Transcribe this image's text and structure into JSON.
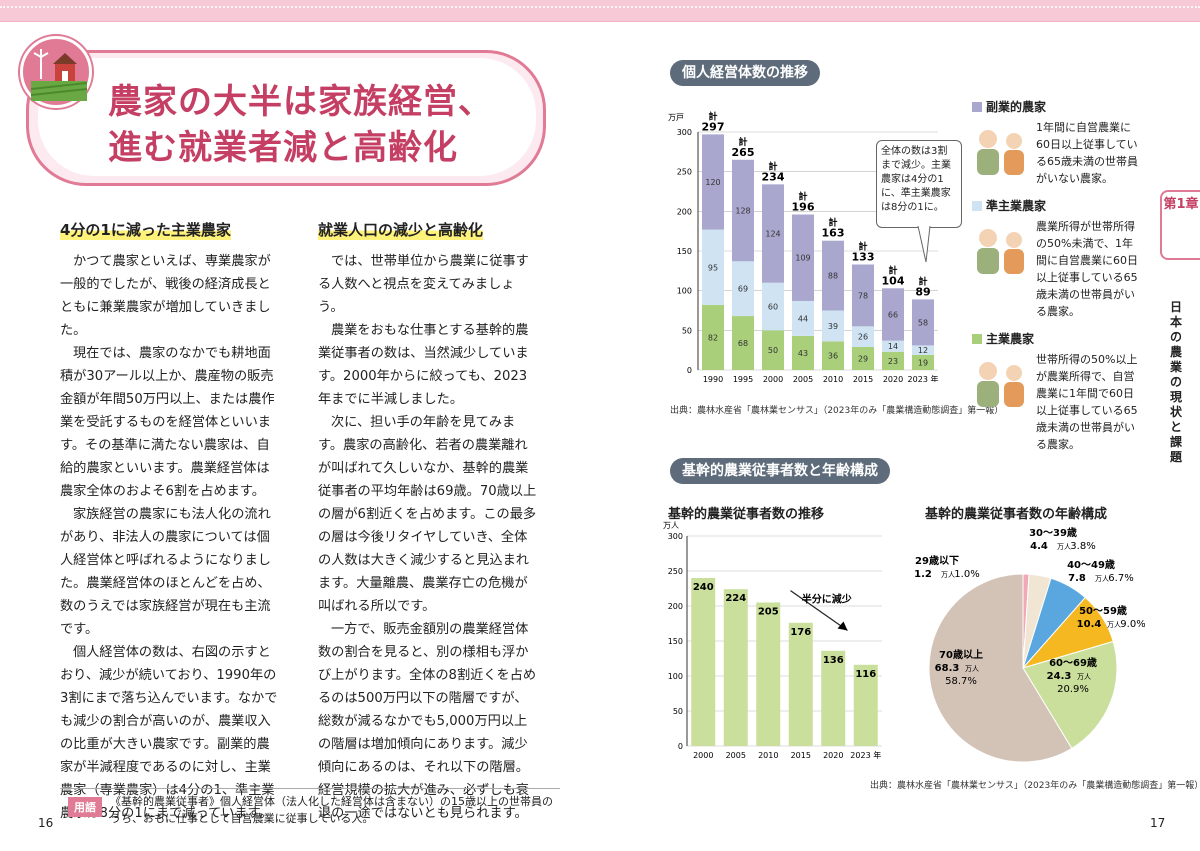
{
  "title": {
    "line1": "農家の大半は家族経営、",
    "line2": "進む就業者減と高齢化"
  },
  "left": {
    "col1_heading": "4分の1に減った主業農家",
    "col1_paragraphs": [
      "かつて農家といえば、専業農家が一般的でしたが、戦後の経済成長とともに兼業農家が増加していきました。",
      "現在では、農家のなかでも耕地面積が30アール以上か、農産物の販売金額が年間50万円以上、または農作業を受託するものを経営体といいます。その基準に満たない農家は、自給的農家といいます。農業経営体は農家全体のおよそ6割を占めます。",
      "家族経営の農家にも法人化の流れがあり、非法人の農家については個人経営体と呼ばれるようになりました。農業経営体のほとんどを占め、数のうえでは家族経営が現在も主流です。",
      "個人経営体の数は、右図の示すとおり、減少が続いており、1990年の3割にまで落ち込んでいます。なかでも減少の割合が高いのが、農業収入の比重が大きい農家です。副業的農家が半減程度であるのに対し、主業農家（専業農家）は4分の1、準主業農家は8分の1にまで減っています。"
    ],
    "col2_heading": "就業人口の減少と高齢化",
    "col2_paragraphs": [
      "では、世帯単位から農業に従事する人数へと視点を変えてみましょう。",
      "農業をおもな仕事とする基幹的農業従事者の数は、当然減少しています。2000年からに絞っても、2023年までに半減しました。",
      "次に、担い手の年齢を見てみます。農家の高齢化、若者の農業離れが叫ばれて久しいなか、基幹的農業従事者の平均年齢は69歳。70歳以上の層が6割近くを占めます。この最多の層は今後リタイヤしていき、全体の人数は大きく減少すると見込まれます。大量離農、農業存亡の危機が叫ばれる所以です。",
      "一方で、販売金額別の農業経営体数の割合を見ると、別の様相も浮かび上がります。全体の8割近くを占めるのは500万円以下の階層ですが、総数が減るなかでも5,000万円以上の階層は増加傾向にあります。減少傾向にあるのは、それ以下の階層。経営規模の拡大が進み、必ずしも衰退の一途ではないとも見られます。"
    ]
  },
  "glossary": {
    "tag": "用語",
    "text": "《基幹的農業従事者》個人経営体（法人化した経営体は含まない）の15歳以上の世帯員のうち、おもに仕事として自営農業に従事している人。"
  },
  "page_left": "16",
  "page_right": "17",
  "side": {
    "tab": "第1章",
    "vertical": "日本の農業の現状と課題"
  },
  "chart1": {
    "heading": "個人経営体数の推移",
    "unit": "万戸",
    "callout": "全体の数は3割まで減少。主業農家は4分の1に、準主業農家は8分の1に。",
    "total_prefix": "計",
    "legend": [
      {
        "name": "副業的農家",
        "color": "#aaa7cf",
        "desc": "1年間に自営農業に60日以上従事している65歳未満の世帯員がいない農家。"
      },
      {
        "name": "準主業農家",
        "color": "#cfe3f3",
        "desc": "農業所得が世帯所得の50%未満で、1年間に自営農業に60日以上従事している65歳未満の世帯員がいる農家。"
      },
      {
        "name": "主業農家",
        "color": "#a9cf7b",
        "desc": "世帯所得の50%以上が農業所得で、自営農業に1年間で60日以上従事している65歳未満の世帯員がいる農家。"
      }
    ],
    "source": "出典：農林水産省「農林業センサス」（2023年のみ「農業構造動態調査」第一報）"
  },
  "chart_data": [
    {
      "type": "bar",
      "stacked": true,
      "categories": [
        "1990",
        "1995",
        "2000",
        "2005",
        "2010",
        "2015",
        "2020",
        "2023 年"
      ],
      "series": [
        {
          "name": "主業農家",
          "values": [
            82,
            68,
            50,
            43,
            36,
            29,
            23,
            19
          ]
        },
        {
          "name": "準主業農家",
          "values": [
            95,
            69,
            60,
            44,
            39,
            26,
            14,
            12
          ]
        },
        {
          "name": "副業的農家",
          "values": [
            120,
            128,
            124,
            109,
            88,
            78,
            66,
            58
          ]
        }
      ],
      "totals": [
        297,
        265,
        234,
        196,
        163,
        133,
        104,
        89
      ],
      "ylabel": "万戸",
      "ylim": [
        0,
        300
      ],
      "yticks": [
        0,
        50,
        100,
        150,
        200,
        250,
        300
      ],
      "grid": true
    },
    {
      "type": "bar",
      "title": "基幹的農業従事者数の推移",
      "categories": [
        "2000",
        "2005",
        "2010",
        "2015",
        "2020",
        "2023 年"
      ],
      "values": [
        240,
        224,
        205,
        176,
        136,
        116
      ],
      "ylabel": "万人",
      "ylim": [
        0,
        300
      ],
      "yticks": [
        0,
        50,
        100,
        150,
        200,
        250,
        300
      ],
      "annotation": "半分に減少",
      "grid": true
    },
    {
      "type": "pie",
      "title": "基幹的農業従事者数の年齢構成",
      "slices": [
        {
          "label": "29歳以下",
          "value": 1.2,
          "unit": "万人",
          "percent": "1.0%",
          "color": "#f2a9b6"
        },
        {
          "label": "30～39歳",
          "value": 4.4,
          "unit": "万人",
          "percent": "3.8%",
          "color": "#f1e6d4"
        },
        {
          "label": "40～49歳",
          "value": 7.8,
          "unit": "万人",
          "percent": "6.7%",
          "color": "#5aa6df"
        },
        {
          "label": "50～59歳",
          "value": 10.4,
          "unit": "万人",
          "percent": "9.0%",
          "color": "#f5b820"
        },
        {
          "label": "60～69歳",
          "value": 24.3,
          "unit": "万人",
          "percent": "20.9%",
          "color": "#c9df9b"
        },
        {
          "label": "70歳以上",
          "value": 68.3,
          "unit": "万人",
          "percent": "58.7%",
          "color": "#d3c2b6"
        }
      ]
    }
  ],
  "chart2": {
    "heading": "基幹的農業従事者数と年齢構成",
    "source": "出典：農林水産省「農林業センサス」（2023年のみ「農業構造動態調査」第一報）"
  }
}
